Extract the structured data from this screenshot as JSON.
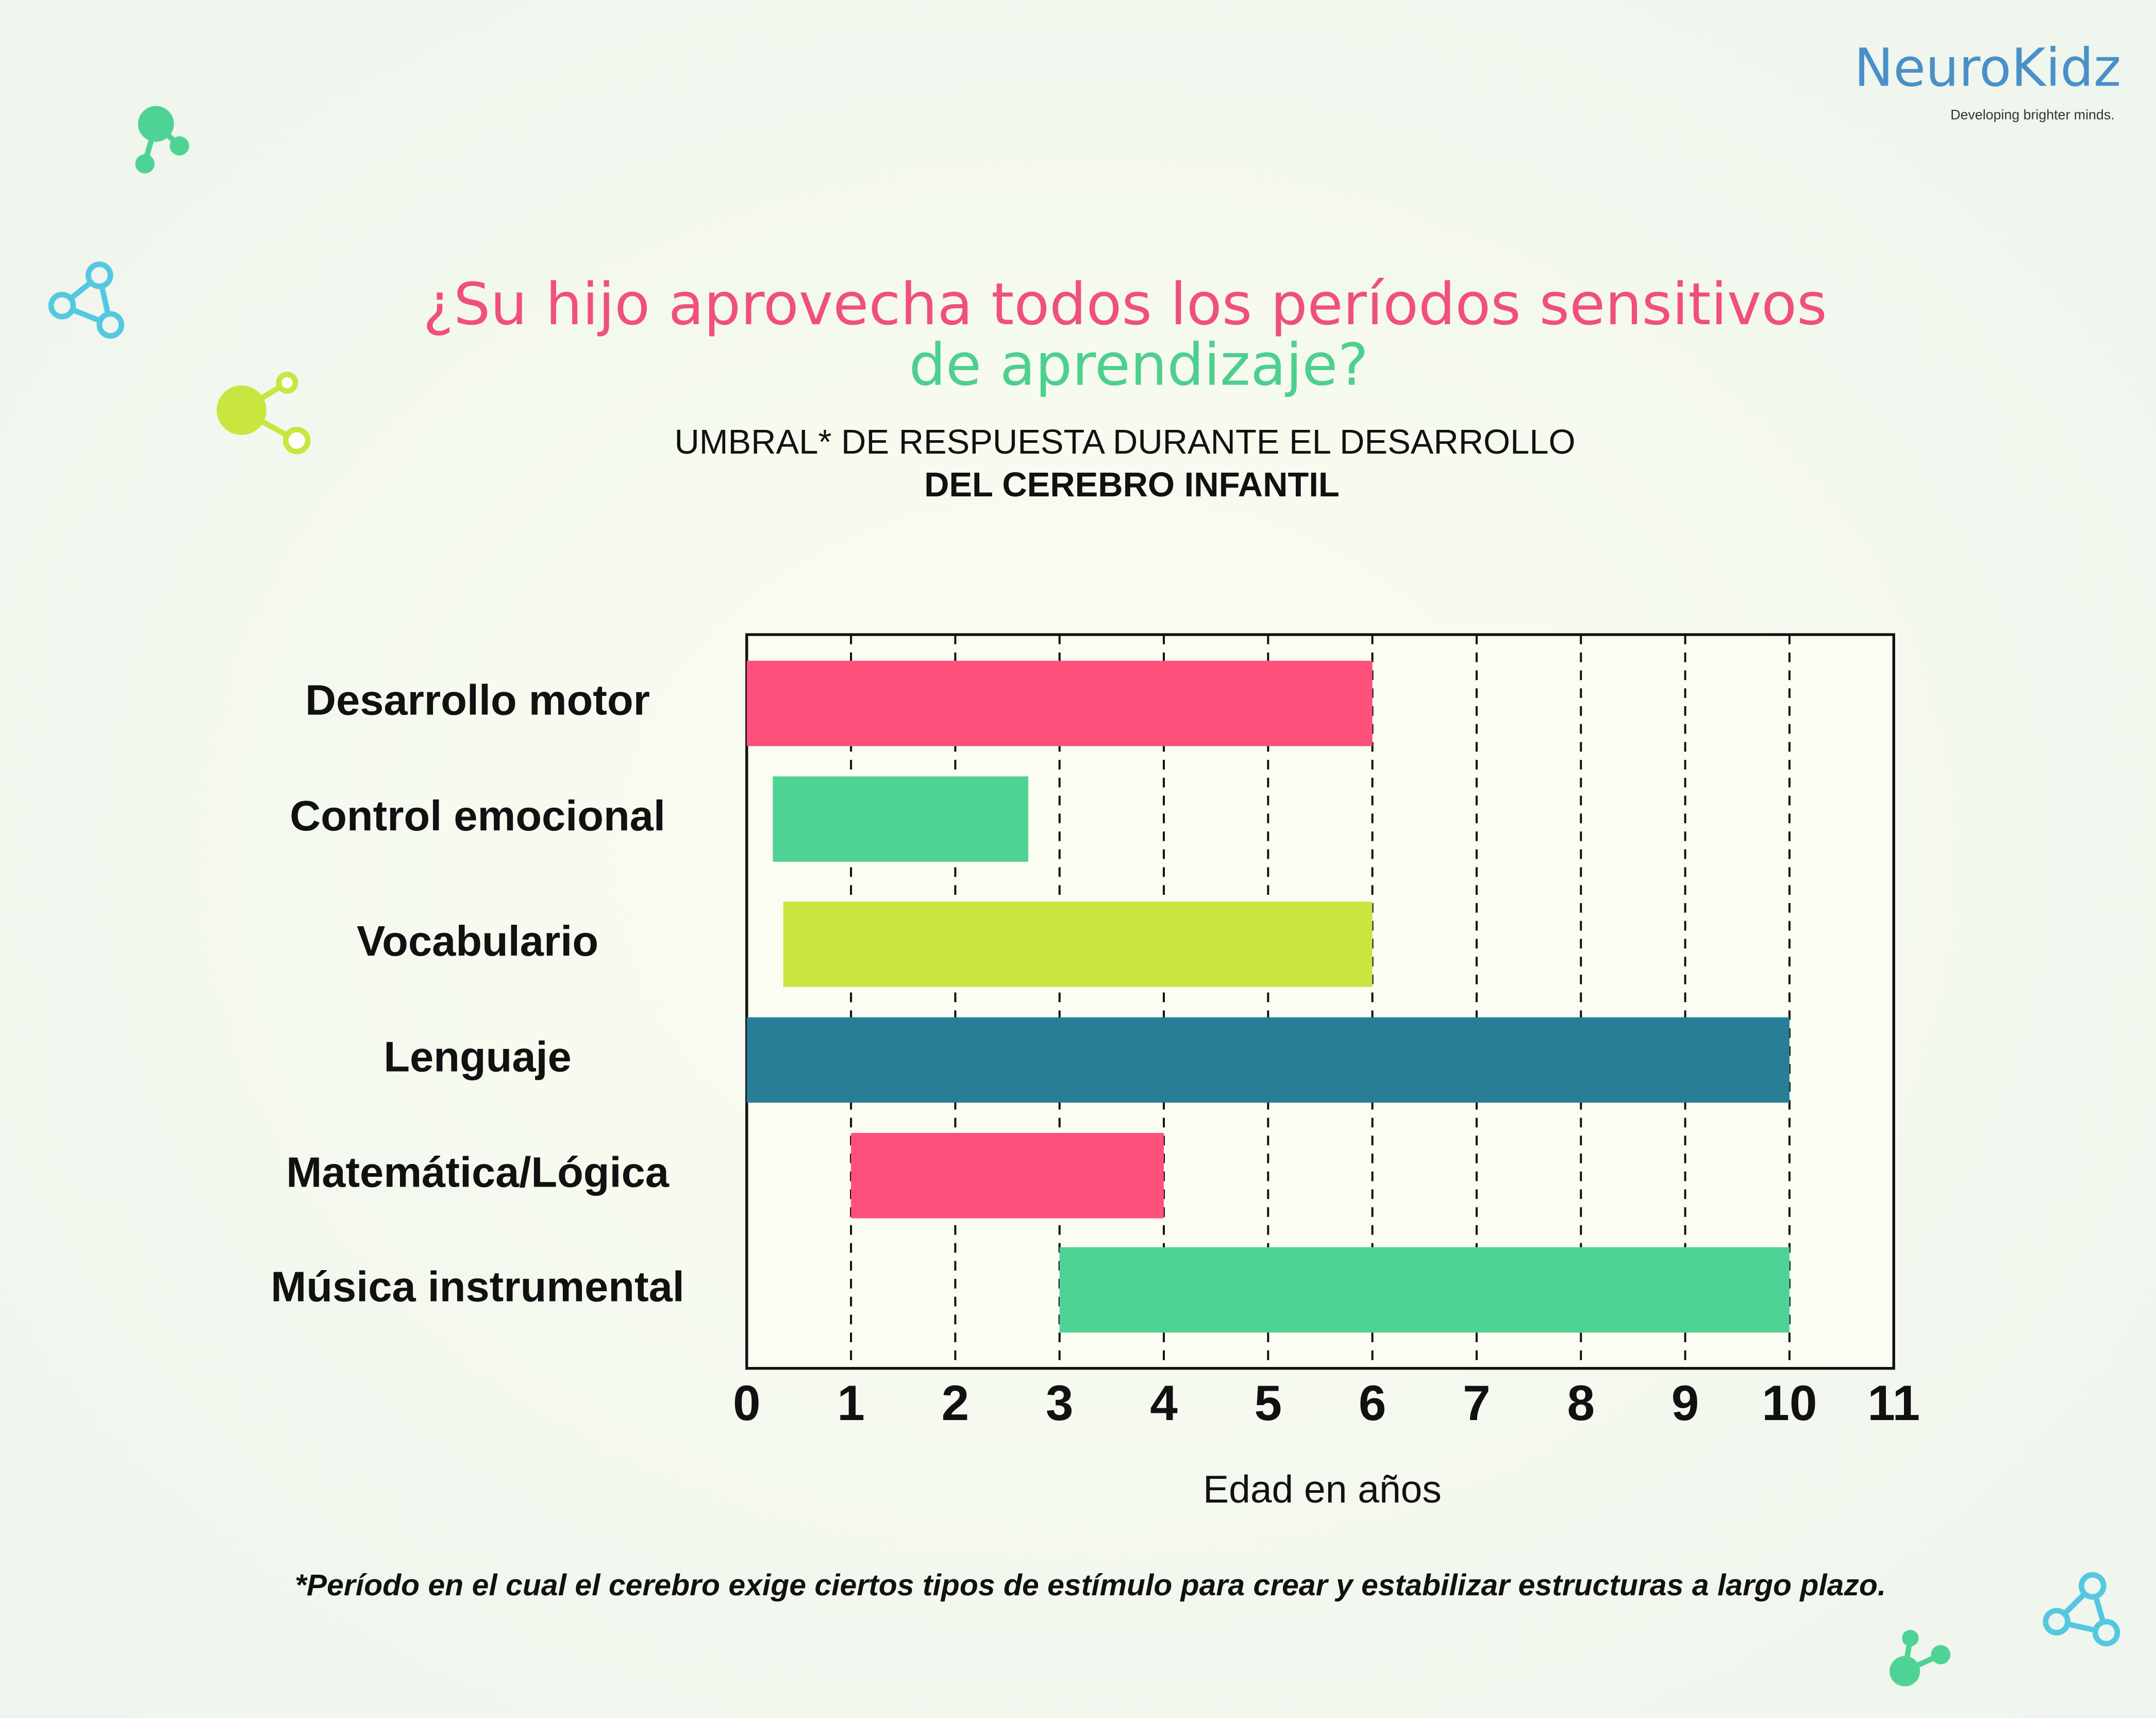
{
  "chart_data": {
    "type": "range-bar",
    "title": "¿Su hijo aprovecha todos los períodos sensitivos",
    "title_line2": "de aprendizaje?",
    "subtitle": "UMBRAL* DE RESPUESTA DURANTE EL DESARROLLO",
    "subtitle_line2": "DEL CEREBRO INFANTIL",
    "x_label": "Edad en años",
    "footnote": "*Período en el cual el cerebro exige ciertos tipos de estímulo para crear y estabilizar estructuras a largo plazo.",
    "logo": {
      "name": "NeuroKidz",
      "tagline": "Developing brighter minds."
    },
    "categories": [
      "Desarrollo motor",
      "Control emocional",
      "Vocabulario",
      "Lenguaje",
      "Matemática/Lógica",
      "Música instrumental"
    ],
    "values": [
      [
        0,
        6
      ],
      [
        0.25,
        2.7
      ],
      [
        0.35,
        6
      ],
      [
        0,
        10
      ],
      [
        1,
        4
      ],
      [
        3,
        10
      ]
    ],
    "colors": [
      "#ff4f7b",
      "#4fd394",
      "#c8e63f",
      "#287e96",
      "#ff4f7b",
      "#4fd394"
    ],
    "xlim": [
      0,
      11
    ],
    "xticks": [
      0,
      1,
      2,
      3,
      4,
      5,
      6,
      7,
      8,
      9,
      10,
      11
    ],
    "grid": true
  }
}
